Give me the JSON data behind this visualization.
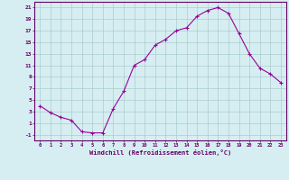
{
  "x": [
    0,
    1,
    2,
    3,
    4,
    5,
    6,
    7,
    8,
    9,
    10,
    11,
    12,
    13,
    14,
    15,
    16,
    17,
    18,
    19,
    20,
    21,
    22,
    23
  ],
  "y": [
    4,
    2.8,
    2,
    1.5,
    -0.5,
    -0.7,
    -0.7,
    3.5,
    6.5,
    11,
    12,
    14.5,
    15.5,
    17,
    17.5,
    19.5,
    20.5,
    21,
    20,
    16.5,
    13,
    10.5,
    9.5,
    8
  ],
  "line_color": "#990099",
  "marker": "+",
  "bg_color": "#d6eef2",
  "grid_color": "#aacccc",
  "xlabel": "Windchill (Refroidissement éolien,°C)",
  "ylabel_ticks": [
    -1,
    1,
    3,
    5,
    7,
    9,
    11,
    13,
    15,
    17,
    19,
    21
  ],
  "xlim": [
    -0.5,
    23.5
  ],
  "ylim": [
    -2,
    22
  ],
  "font_color": "#660066"
}
